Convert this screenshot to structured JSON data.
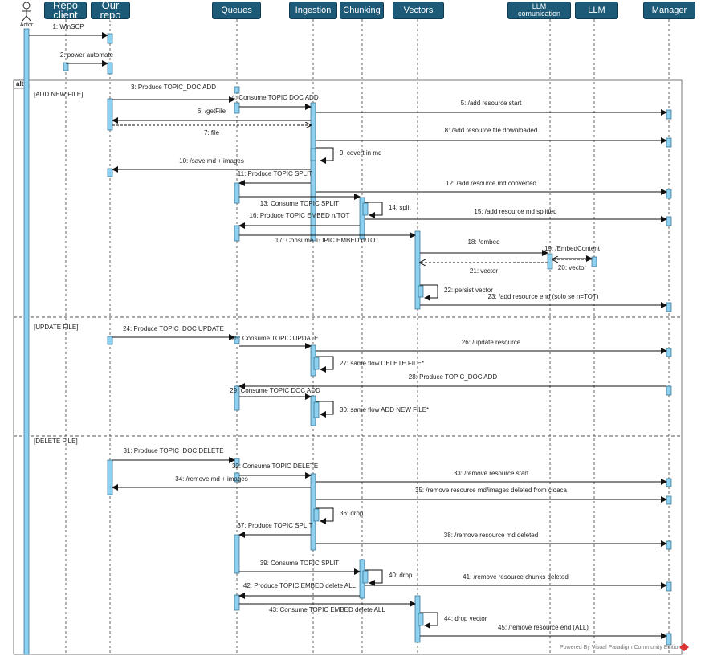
{
  "actor": "Actor",
  "participants": [
    "Repo client",
    "Our repo",
    "Queues",
    "Ingestion",
    "Chunking",
    "Vectors",
    "LLM comunication",
    "LLM",
    "Manager"
  ],
  "frame": {
    "operator": "alt",
    "guards": [
      "[ADD NEW FILE]",
      "[UPDATE FILE]",
      "[DELETE FILE]"
    ]
  },
  "messages": [
    "1: WinSCP",
    "2: power automate",
    "3: Produce TOPIC_DOC ADD",
    "4: Consume TOPIC DOC ADD",
    "5: /add resource start",
    "6: /getFile",
    "7: file",
    "8: /add resource file downloaded",
    "9: covert in md",
    "10: /save md + images",
    "11: Produce TOPIC SPLIT",
    "12: /add resource md converted",
    "13: Consume TOPIC SPLIT",
    "14: split",
    "15: /add resource md splitted",
    "16: Produce TOPIC EMBED n/TOT",
    "17: Consume TOPIC EMBED n/TOT",
    "18: /embed",
    "19: /EmbedContent",
    "20: vector",
    "21: vector",
    "22: persist vector",
    "23: /add resource end (solo se n=TOT)",
    "24: Produce TOPIC_DOC UPDATE",
    "25: Consume TOPIC UPDATE",
    "26: /update resource",
    "27: same flow DELETE FILE*",
    "28: Produce TOPIC_DOC ADD",
    "29: Consume TOPIC DOC ADD",
    "30: same flow ADD NEW FILE*",
    "31: Produce TOPIC_DOC DELETE",
    "32: Consume TOPIC DELETE",
    "33: /remove resource start",
    "34: /remove md + images",
    "35: /remove resource md/images deleted from cloaca",
    "36: drop",
    "37: Produce TOPIC SPLIT",
    "38: /remove resource md deleted",
    "39: Consume TOPIC SPLIT",
    "40: drop",
    "41: /remove resource chunks deleted",
    "42: Produce TOPIC EMBED delete ALL",
    "43: Consume TOPIC EMBED delete ALL",
    "44: drop vector",
    "45: /remove resource end (ALL)"
  ],
  "footer": "Powered By Visual Paradigm Community Edition"
}
